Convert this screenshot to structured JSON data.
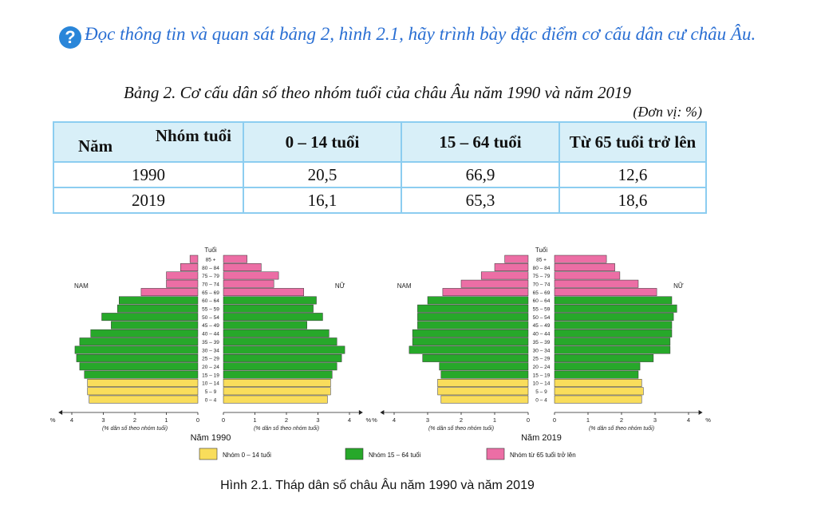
{
  "question": {
    "icon": "question-circle-icon",
    "glyph": "?",
    "text": "Đọc thông tin và quan sát bảng 2, hình 2.1, hãy trình bày đặc điểm cơ cấu dân cư châu Âu."
  },
  "table": {
    "title": "Bảng 2. Cơ cấu dân số theo nhóm tuổi của châu Âu năm 1990 và năm 2019",
    "unit": "(Đơn vị: %)",
    "corner_top": "Nhóm tuổi",
    "corner_bottom": "Năm",
    "headers": [
      "0 – 14  tuổi",
      "15 – 64 tuổi",
      "Từ 65 tuổi trở lên"
    ],
    "rows": [
      {
        "year": "1990",
        "values": [
          "20,5",
          "66,9",
          "12,6"
        ]
      },
      {
        "year": "2019",
        "values": [
          "16,1",
          "65,3",
          "18,6"
        ]
      }
    ]
  },
  "chart_data": [
    {
      "type": "bar",
      "orientation": "horizontal-pyramid",
      "title": "Năm 1990",
      "axis_title": "Tuổi",
      "left_label": "NAM",
      "right_label": "NỮ",
      "xlabel": "(% dân số theo nhóm tuổi)",
      "x_unit": "%",
      "xlim": [
        0,
        4
      ],
      "x_ticks": [
        "4",
        "3",
        "2",
        "1",
        "0",
        "0",
        "1",
        "2",
        "3",
        "4"
      ],
      "categories": [
        "85 +",
        "80 – 84",
        "75 – 79",
        "70 – 74",
        "65 – 69",
        "60 – 64",
        "55 – 59",
        "50 – 54",
        "45 – 49",
        "40 – 44",
        "35 – 39",
        "30 – 34",
        "25 – 29",
        "20 – 24",
        "15 – 19",
        "10 – 14",
        "5 – 9",
        "0 – 4"
      ],
      "series": [
        {
          "name": "NAM",
          "values": [
            0.25,
            0.55,
            1.0,
            1.0,
            1.8,
            2.5,
            2.55,
            3.05,
            2.75,
            3.4,
            3.75,
            3.9,
            3.85,
            3.75,
            3.6,
            3.5,
            3.5,
            3.45
          ]
        },
        {
          "name": "NỮ",
          "values": [
            0.75,
            1.2,
            1.75,
            1.6,
            2.55,
            2.95,
            2.85,
            3.15,
            2.65,
            3.35,
            3.6,
            3.85,
            3.75,
            3.6,
            3.45,
            3.4,
            3.4,
            3.3
          ]
        }
      ],
      "group_colors": [
        "#f9dd5b",
        "#27a82a",
        "#ec6ea5"
      ]
    },
    {
      "type": "bar",
      "orientation": "horizontal-pyramid",
      "title": "Năm 2019",
      "axis_title": "Tuổi",
      "left_label": "NAM",
      "right_label": "NỮ",
      "xlabel": "(% dân số theo nhóm tuổi)",
      "x_unit": "%",
      "xlim": [
        0,
        4
      ],
      "x_ticks": [
        "4",
        "3",
        "2",
        "1",
        "0",
        "0",
        "1",
        "2",
        "3",
        "4"
      ],
      "categories": [
        "85 +",
        "80 – 84",
        "75 – 79",
        "70 – 74",
        "65 – 69",
        "60 – 64",
        "55 – 59",
        "50 – 54",
        "45 – 49",
        "40 – 44",
        "35 – 39",
        "30 – 34",
        "25 – 29",
        "20 – 24",
        "15 – 19",
        "10 – 14",
        "5 – 9",
        "0 – 4"
      ],
      "series": [
        {
          "name": "NAM",
          "values": [
            0.7,
            1.0,
            1.4,
            2.0,
            2.55,
            3.0,
            3.3,
            3.3,
            3.3,
            3.45,
            3.45,
            3.55,
            3.15,
            2.65,
            2.6,
            2.7,
            2.7,
            2.6
          ]
        },
        {
          "name": "NỮ",
          "values": [
            1.55,
            1.8,
            1.95,
            2.5,
            3.05,
            3.5,
            3.65,
            3.55,
            3.5,
            3.5,
            3.45,
            3.45,
            2.95,
            2.55,
            2.5,
            2.6,
            2.65,
            2.6
          ]
        }
      ],
      "group_colors": [
        "#f9dd5b",
        "#27a82a",
        "#ec6ea5"
      ]
    }
  ],
  "legend": [
    {
      "label": "Nhóm 0 – 14 tuổi",
      "color": "#f9dd5b"
    },
    {
      "label": "Nhóm 15 – 64 tuổi",
      "color": "#27a82a"
    },
    {
      "label": "Nhóm từ 65 tuổi trở lên",
      "color": "#ec6ea5"
    }
  ],
  "caption": "Hình 2.1. Tháp dân số châu Âu năm 1990 và năm 2019"
}
